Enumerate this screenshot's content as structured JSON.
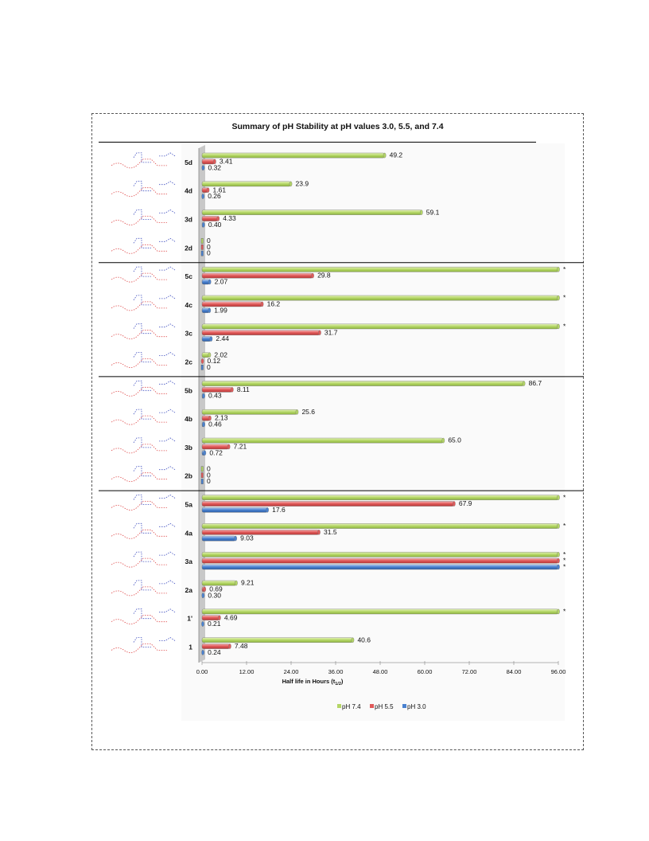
{
  "chart_data": {
    "type": "bar",
    "orientation": "horizontal",
    "title": "Summary of pH Stability at pH values 3.0, 5.5, and 7.4",
    "xlabel": "Half life in Hours (t1/2)",
    "xlabel_main": "Half life in Hours (t",
    "xlabel_sub": "1/2",
    "xlabel_end": ")",
    "xlim": [
      0,
      96
    ],
    "xticks": [
      "0.00",
      "12.00",
      "24.00",
      "36.00",
      "48.00",
      "60.00",
      "72.00",
      "84.00",
      "96.00"
    ],
    "legend_position": "bottom",
    "categories": [
      "5d",
      "4d",
      "3d",
      "2d",
      "5c",
      "4c",
      "3c",
      "2c",
      "5b",
      "4b",
      "3b",
      "2b",
      "5a",
      "4a",
      "3a",
      "2a",
      "1'",
      "1"
    ],
    "group_dividers_after": [
      "2d",
      "2c",
      "2b"
    ],
    "series": [
      {
        "name": "pH 7.4",
        "color": "#b4d666",
        "values": [
          49.2,
          23.9,
          59.1,
          0,
          96,
          96,
          96,
          2.02,
          86.7,
          25.6,
          65.0,
          0,
          96,
          96,
          96,
          9.21,
          96,
          40.6
        ],
        "labels": [
          "49.2",
          "23.9",
          "59.1",
          "0",
          "*",
          "*",
          "*",
          "2.02",
          "86.7",
          "25.6",
          "65.0",
          "0",
          "*",
          "*",
          "*",
          "9.21",
          "*",
          "40.6"
        ]
      },
      {
        "name": "pH 5.5",
        "color": "#e05a5a",
        "values": [
          3.41,
          1.61,
          4.33,
          0,
          29.8,
          16.2,
          31.7,
          0.12,
          8.11,
          2.13,
          7.21,
          0,
          67.9,
          31.5,
          96,
          0.69,
          4.69,
          7.48
        ],
        "labels": [
          "3.41",
          "1.61",
          "4.33",
          "0",
          "29.8",
          "16.2",
          "31.7",
          "0.12",
          "8.11",
          "2.13",
          "7.21",
          "0",
          "67.9",
          "31.5",
          "*",
          "0.69",
          "4.69",
          "7.48"
        ]
      },
      {
        "name": "pH 3.0",
        "color": "#4a82d0",
        "values": [
          0.32,
          0.26,
          0.4,
          0,
          2.07,
          1.99,
          2.44,
          0,
          0.43,
          0.46,
          0.72,
          0,
          17.6,
          9.03,
          96,
          0.3,
          0.21,
          0.24
        ],
        "labels": [
          "0.32",
          "0.26",
          "0.40",
          "0",
          "2.07",
          "1.99",
          "2.44",
          "0",
          "0.43",
          "0.46",
          "0.72",
          "0",
          "17.6",
          "9.03",
          "*",
          "0.30",
          "0.21",
          "0.24"
        ]
      }
    ]
  }
}
